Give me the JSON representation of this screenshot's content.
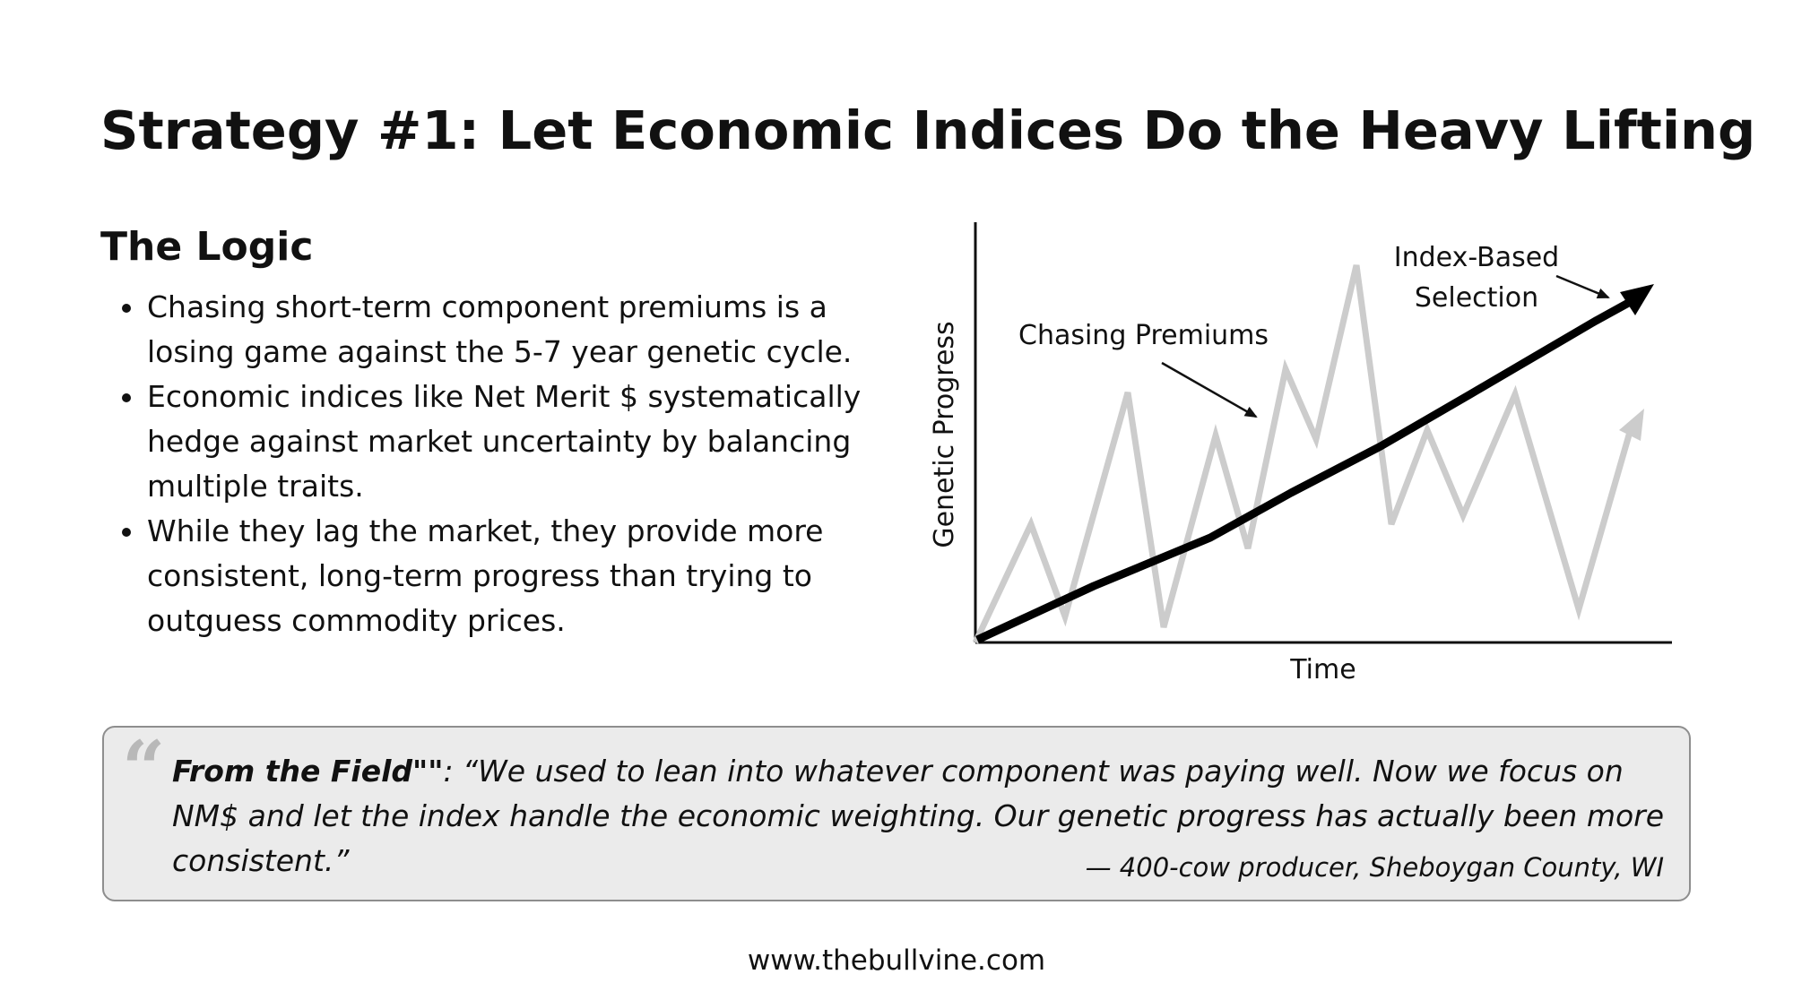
{
  "slide": {
    "title": "Strategy #1: Let Economic Indices Do the Heavy Lifting",
    "url": "www.thebullvine.com"
  },
  "logic": {
    "heading": "The Logic",
    "bullets": [
      "Chasing short-term component premiums is a losing game against the 5-7 year genetic cycle.",
      "Economic indices like Net Merit $ systematically hedge against market uncertainty by balancing multiple traits.",
      "While they lag the market, they provide more consistent, long-term progress than trying to outguess commodity prices."
    ]
  },
  "diagram": {
    "y_axis_label": "Genetic Progress",
    "x_axis_label": "Time",
    "annotation_chasing": "Chasing Premiums",
    "annotation_index_line1": "Index-Based",
    "annotation_index_line2": "Selection",
    "colors": {
      "index_line": "#000000",
      "chasing_line": "#cccccc",
      "axis": "#111111"
    }
  },
  "quote": {
    "label": "From the Field\"\"",
    "colon": ": ",
    "text": "“We used to lean into whatever component was paying well. Now we focus on NM$ and let the index handle the economic weighting. Our genetic progress has actually been more consistent.”",
    "attribution": "— 400-cow producer, Sheboygan County, WI",
    "icon": "quote-icon"
  }
}
